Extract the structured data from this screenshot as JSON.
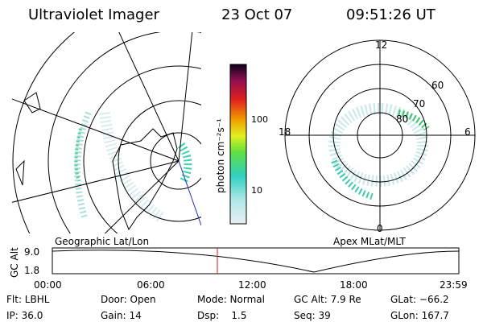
{
  "header": {
    "title": "Ultraviolet Imager",
    "date": "23 Oct 07",
    "time": "09:51:26 UT"
  },
  "left_map": {
    "caption": "Geographic Lat/Lon"
  },
  "colorbar": {
    "label": "photon cm⁻²s⁻¹",
    "ticks": [
      "100",
      "10"
    ]
  },
  "right_map": {
    "caption": "Apex MLat/MLT",
    "labels": {
      "top": "12",
      "left": "18",
      "right": "6",
      "bottom": "0",
      "lat60": "60",
      "lat70": "70",
      "lat80": "80"
    }
  },
  "timeline": {
    "ylabel": "GC Alt",
    "ymax": "9.0",
    "ymin": "1.8",
    "ticks": [
      "00:00",
      "06:00",
      "12:00",
      "18:00",
      "23:59"
    ]
  },
  "info": {
    "rows": [
      [
        "Flt: LBHL",
        "Door: Open",
        "Mode: Normal",
        "GC Alt: 7.9 Re",
        "GLat: −66.2"
      ],
      [
        "IP: 36.0",
        "Gain: 14",
        "Dsp:    1.5",
        "Seq: 39",
        "GLon: 167.7"
      ]
    ]
  }
}
